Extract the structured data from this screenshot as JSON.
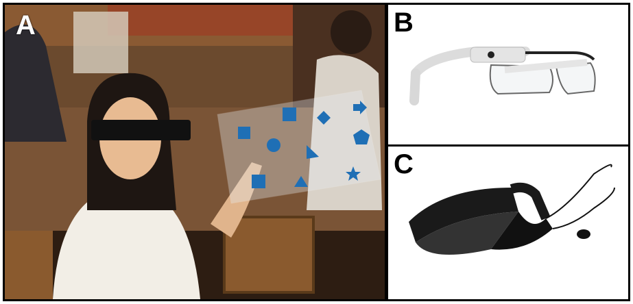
{
  "figure": {
    "panels": [
      {
        "label": "A",
        "content": "photo-woman-with-smart-glasses-and-virtual-touch-panel"
      },
      {
        "label": "B",
        "content": "photo-google-glass-style-headset"
      },
      {
        "label": "C",
        "content": "photo-video-glasses-headset"
      }
    ],
    "overlay_shapes": [
      "square",
      "square",
      "diamond",
      "arrow",
      "pentagon",
      "circle",
      "triangle",
      "square",
      "triangle",
      "star"
    ],
    "colors": {
      "overlay_shape": "#1f6fb5",
      "border": "#000000"
    }
  }
}
